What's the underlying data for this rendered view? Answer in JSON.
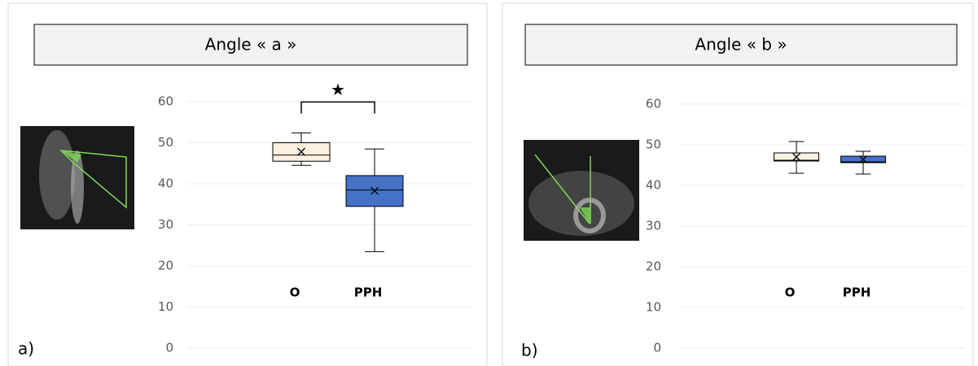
{
  "chart_data": [
    {
      "type": "box",
      "title": "Angle « a »",
      "panel_label": "a)",
      "annotation": "★",
      "categories": [
        "O",
        "PPH"
      ],
      "colors": [
        "#fdf0e0",
        "#4472c4"
      ],
      "values": [
        {
          "min": 44.5,
          "q1": 45.5,
          "median": 47,
          "q3": 50,
          "max": 52.4,
          "mean": 47.8
        },
        {
          "min": 23.5,
          "q1": 34.5,
          "median": 38.5,
          "q3": 42,
          "max": 48.5,
          "mean": 38.3
        }
      ],
      "ylim": [
        0,
        60
      ],
      "yticks": [
        0,
        10,
        20,
        30,
        40,
        50,
        60
      ],
      "grid": true
    },
    {
      "type": "box",
      "title": "Angle « b »",
      "panel_label": "b)",
      "categories": [
        "O",
        "PPH"
      ],
      "colors": [
        "#fdf0e0",
        "#4472c4"
      ],
      "values": [
        {
          "min": 43,
          "q1": 46,
          "median": 46.2,
          "q3": 48,
          "max": 50.8,
          "mean": 47
        },
        {
          "min": 42.8,
          "q1": 45.6,
          "median": 45.8,
          "q3": 47.2,
          "max": 48.4,
          "mean": 46.4
        }
      ],
      "ylim": [
        0,
        60
      ],
      "yticks": [
        0,
        10,
        20,
        30,
        40,
        50,
        60
      ],
      "grid": true
    }
  ]
}
